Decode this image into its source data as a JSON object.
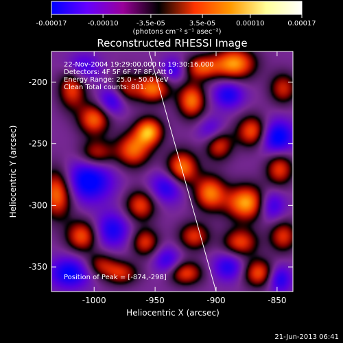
{
  "colorbar": {
    "tick_labels": [
      "-0.00017",
      "-0.00010",
      "-3.5e-05",
      "3.5e-05",
      "0.00010",
      "0.00017"
    ],
    "tick_values": [
      -0.00017,
      -0.0001,
      -3.5e-05,
      3.5e-05,
      0.0001,
      0.00017
    ],
    "range": [
      -0.00017,
      0.00017
    ],
    "units_label": "(photons cm⁻² s⁻¹ asec⁻²)",
    "colors": [
      "#0000ff",
      "#6600ff",
      "#990099",
      "#000000",
      "#ff3300",
      "#ff9900",
      "#ffff99",
      "#ffffff"
    ]
  },
  "chart_data": {
    "type": "heatmap",
    "title": "Reconstructed RHESSI Image",
    "xlabel": "Heliocentric X (arcsec)",
    "ylabel": "Heliocentric Y (arcsec)",
    "xlim": [
      -1035,
      -837
    ],
    "ylim": [
      -370,
      -175
    ],
    "x_ticks": [
      -1000,
      -950,
      -900,
      -850
    ],
    "x_tick_labels": [
      "-1000",
      "-950",
      "-900",
      "-850"
    ],
    "y_ticks": [
      -200,
      -250,
      -300,
      -350
    ],
    "y_tick_labels": [
      "-200",
      "-250",
      "-300",
      "-350"
    ],
    "info_lines": [
      "22-Nov-2004 19:29:00.000 to 19:30:16.000",
      "Detectors: 4F 5F 6F 7F 8F, Att 0",
      "Energy Range: 25.0 - 50.0 keV",
      "Clean    Total counts: 801."
    ],
    "peak_label": "Position of Peak = [-874,-298]",
    "peak": {
      "x": -874,
      "y": -298
    },
    "limb_line": {
      "x": [
        -955,
        -900
      ],
      "y": [
        -175,
        -370
      ]
    },
    "blobs": [
      {
        "x": -1030,
        "y": -290,
        "sx": 9,
        "sy": 14,
        "v": 0.9
      },
      {
        "x": -1018,
        "y": -205,
        "sx": 8,
        "sy": 12,
        "v": 0.7
      },
      {
        "x": -1000,
        "y": -230,
        "sx": 9,
        "sy": 9,
        "v": 0.8
      },
      {
        "x": -998,
        "y": -258,
        "sx": 10,
        "sy": 8,
        "v": 0.6
      },
      {
        "x": -1010,
        "y": -325,
        "sx": 9,
        "sy": 9,
        "v": 0.75
      },
      {
        "x": -995,
        "y": -348,
        "sx": 9,
        "sy": 7,
        "v": 0.5
      },
      {
        "x": -975,
        "y": -205,
        "sx": 8,
        "sy": 9,
        "v": 0.55
      },
      {
        "x": -968,
        "y": -255,
        "sx": 10,
        "sy": 10,
        "v": 0.8
      },
      {
        "x": -955,
        "y": -240,
        "sx": 8,
        "sy": 8,
        "v": 0.95
      },
      {
        "x": -952,
        "y": -205,
        "sx": 10,
        "sy": 8,
        "v": 0.85
      },
      {
        "x": -962,
        "y": -300,
        "sx": 9,
        "sy": 9,
        "v": 0.7
      },
      {
        "x": -958,
        "y": -330,
        "sx": 8,
        "sy": 8,
        "v": 0.65
      },
      {
        "x": -978,
        "y": -355,
        "sx": 10,
        "sy": 7,
        "v": 0.6
      },
      {
        "x": -928,
        "y": -270,
        "sx": 9,
        "sy": 10,
        "v": 0.9
      },
      {
        "x": -920,
        "y": -215,
        "sx": 8,
        "sy": 10,
        "v": 0.85
      },
      {
        "x": -912,
        "y": -188,
        "sx": 10,
        "sy": 7,
        "v": 0.7
      },
      {
        "x": -918,
        "y": -325,
        "sx": 9,
        "sy": 8,
        "v": 0.65
      },
      {
        "x": -925,
        "y": -355,
        "sx": 10,
        "sy": 7,
        "v": 0.7
      },
      {
        "x": -905,
        "y": -290,
        "sx": 9,
        "sy": 10,
        "v": 0.85
      },
      {
        "x": -898,
        "y": -250,
        "sx": 8,
        "sy": 9,
        "v": 0.75
      },
      {
        "x": -885,
        "y": -185,
        "sx": 12,
        "sy": 9,
        "v": 0.95
      },
      {
        "x": -875,
        "y": -298,
        "sx": 12,
        "sy": 10,
        "v": 1.0
      },
      {
        "x": -870,
        "y": -240,
        "sx": 9,
        "sy": 9,
        "v": 0.8
      },
      {
        "x": -880,
        "y": -330,
        "sx": 10,
        "sy": 8,
        "v": 0.7
      },
      {
        "x": -865,
        "y": -355,
        "sx": 9,
        "sy": 8,
        "v": 0.75
      },
      {
        "x": -848,
        "y": -270,
        "sx": 8,
        "sy": 10,
        "v": 0.7
      },
      {
        "x": -845,
        "y": -205,
        "sx": 8,
        "sy": 9,
        "v": 0.6
      },
      {
        "x": -845,
        "y": -325,
        "sx": 8,
        "sy": 9,
        "v": 0.65
      },
      {
        "x": -1005,
        "y": -280,
        "sx": 14,
        "sy": 12,
        "v": -0.8
      },
      {
        "x": -1020,
        "y": -355,
        "sx": 12,
        "sy": 9,
        "v": -0.7
      },
      {
        "x": -1010,
        "y": -188,
        "sx": 10,
        "sy": 8,
        "v": -0.5
      },
      {
        "x": -985,
        "y": -215,
        "sx": 8,
        "sy": 8,
        "v": -0.6
      },
      {
        "x": -985,
        "y": -320,
        "sx": 10,
        "sy": 10,
        "v": -0.6
      },
      {
        "x": -940,
        "y": -285,
        "sx": 10,
        "sy": 9,
        "v": -0.6
      },
      {
        "x": -935,
        "y": -190,
        "sx": 7,
        "sy": 7,
        "v": -0.5
      },
      {
        "x": -940,
        "y": -345,
        "sx": 8,
        "sy": 8,
        "v": -0.5
      },
      {
        "x": -903,
        "y": -240,
        "sx": 8,
        "sy": 8,
        "v": -0.5
      },
      {
        "x": -890,
        "y": -210,
        "sx": 9,
        "sy": 8,
        "v": -0.6
      },
      {
        "x": -850,
        "y": -245,
        "sx": 10,
        "sy": 10,
        "v": -0.8
      },
      {
        "x": -855,
        "y": -300,
        "sx": 8,
        "sy": 9,
        "v": -0.6
      },
      {
        "x": -890,
        "y": -350,
        "sx": 9,
        "sy": 8,
        "v": -0.55
      },
      {
        "x": -848,
        "y": -360,
        "sx": 7,
        "sy": 8,
        "v": -0.6
      }
    ]
  },
  "footer_timestamp": "21-Jun-2013 06:41"
}
